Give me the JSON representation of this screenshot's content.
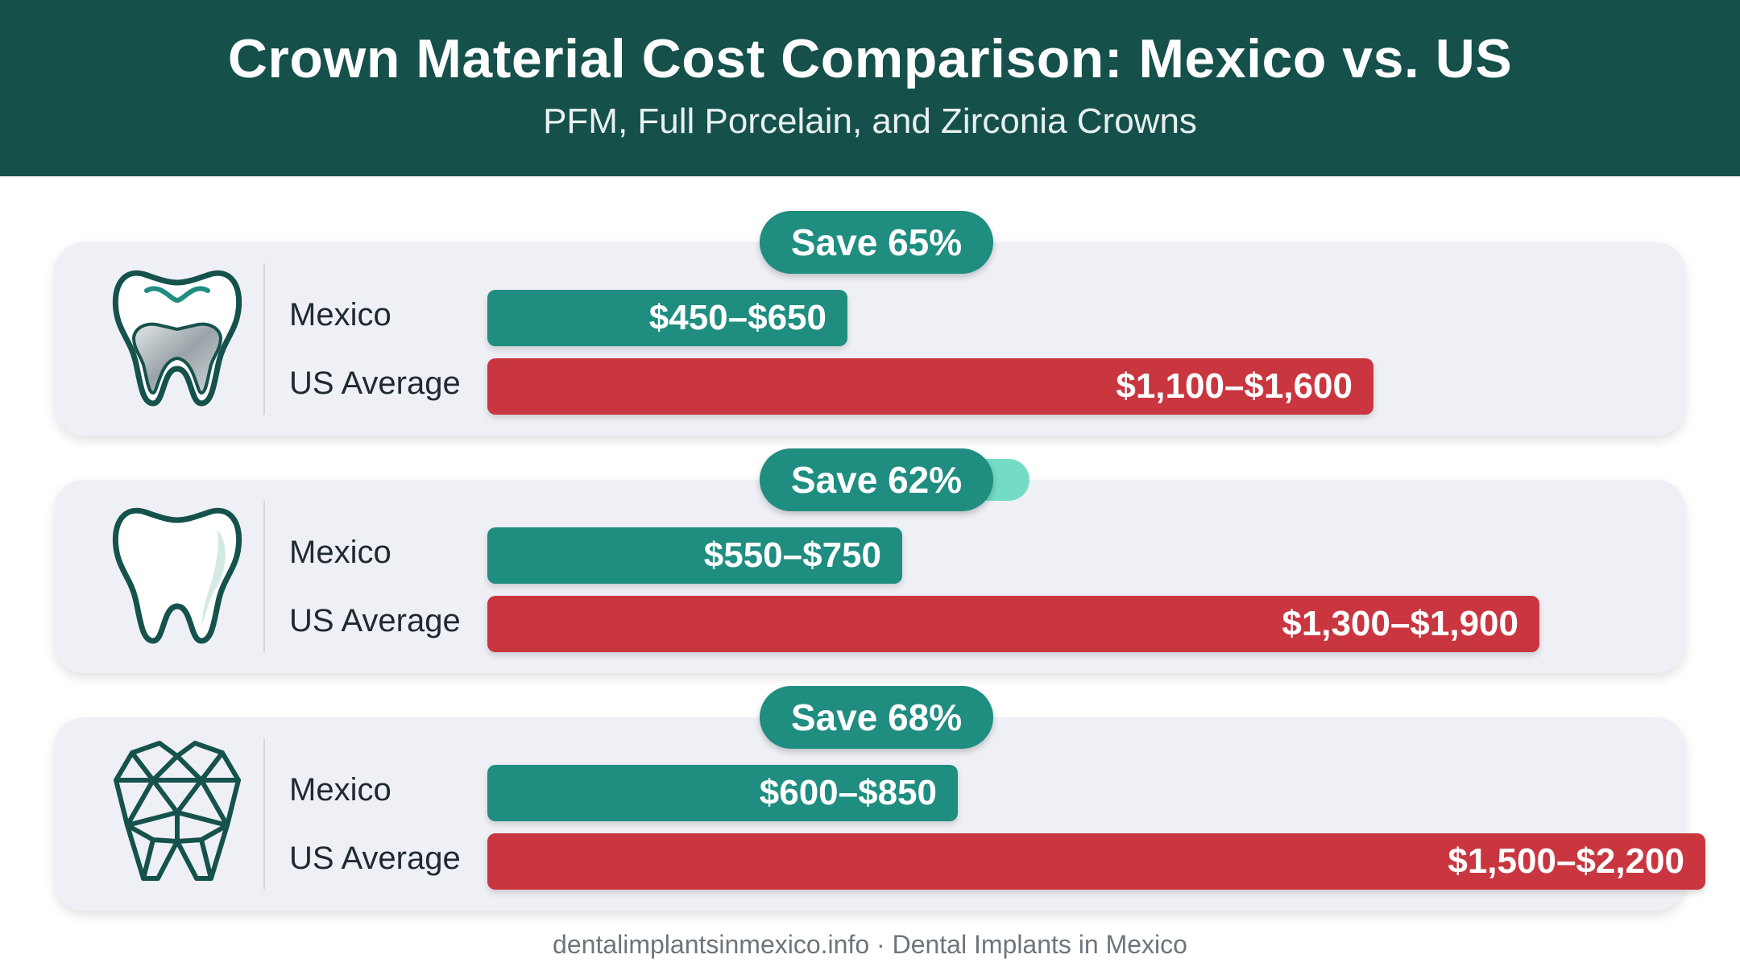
{
  "header": {
    "title": "Crown Material Cost Comparison: Mexico vs. US",
    "subtitle": "PFM, Full Porcelain, and Zirconia Crowns"
  },
  "footer": "dentalimplantsinmexico.info · Dental Implants in Mexico",
  "colors": {
    "header_bg": "#15504b",
    "mexico_bar": "#1f8d80",
    "us_bar": "#c9363f",
    "card_bg": "#eef0f6",
    "badge": "#1f8d80"
  },
  "chart_data": {
    "type": "bar",
    "orientation": "horizontal",
    "value_scale_max_usd": 2200,
    "groups": [
      {
        "icon": "pfm-tooth-icon",
        "badge": "Save 65%",
        "rows": [
          {
            "label": "Mexico",
            "text": "$450–$650",
            "low": 450,
            "high": 650
          },
          {
            "label": "US Average",
            "text": "$1,100–$1,600",
            "low": 1100,
            "high": 1600
          }
        ]
      },
      {
        "icon": "porcelain-tooth-icon",
        "badge": "Save 62%",
        "rows": [
          {
            "label": "Mexico",
            "text": "$550–$750",
            "low": 550,
            "high": 750
          },
          {
            "label": "US Average",
            "text": "$1,300–$1,900",
            "low": 1300,
            "high": 1900
          }
        ]
      },
      {
        "icon": "zirconia-tooth-icon",
        "badge": "Save 68%",
        "rows": [
          {
            "label": "Mexico",
            "text": "$600–$850",
            "low": 600,
            "high": 850
          },
          {
            "label": "US Average",
            "text": "$1,500–$2,200",
            "low": 1500,
            "high": 2200
          }
        ]
      }
    ]
  }
}
